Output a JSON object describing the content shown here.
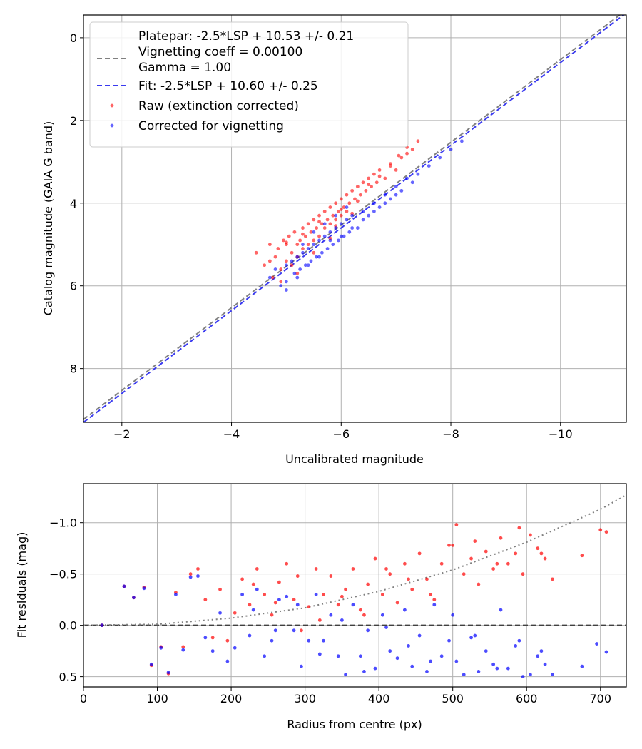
{
  "chart_data": [
    {
      "type": "scatter",
      "xlabel": "Uncalibrated magnitude",
      "ylabel": "Catalog magnitude (GAIA G band)",
      "xlim": [
        -1.3,
        -11.2
      ],
      "ylim": [
        -0.55,
        9.3
      ],
      "x_inverted": true,
      "y_inverted": true,
      "xticks": [
        -2,
        -4,
        -6,
        -8,
        -10
      ],
      "xtick_labels": [
        "−2",
        "−4",
        "−6",
        "−8",
        "−10"
      ],
      "yticks": [
        0,
        2,
        4,
        6,
        8
      ],
      "ytick_labels": [
        "0",
        "2",
        "4",
        "6",
        "8"
      ],
      "grid": true,
      "legend_position": "top-left",
      "lines": [
        {
          "name": "Platepar: -2.5*LSP + 10.53 +/- 0.21\nVignetting coeff = 0.00100\nGamma = 1.00",
          "color": "#808080",
          "style": "dashed",
          "slope": 1.0,
          "intercept": 10.53
        },
        {
          "name": "Fit: -2.5*LSP + 10.60 +/- 0.25",
          "color": "#3a3af0",
          "style": "dashed",
          "slope": 1.0,
          "intercept": 10.6
        }
      ],
      "series": [
        {
          "name": "Raw (extinction corrected)",
          "color": "#ff0000",
          "x": [
            -4.45,
            -4.6,
            -4.7,
            -4.75,
            -4.8,
            -4.85,
            -4.9,
            -4.95,
            -5.0,
            -5.0,
            -5.05,
            -5.1,
            -5.1,
            -5.15,
            -5.2,
            -5.2,
            -5.25,
            -5.3,
            -5.3,
            -5.35,
            -5.4,
            -5.4,
            -5.45,
            -5.5,
            -5.5,
            -5.55,
            -5.6,
            -5.6,
            -5.65,
            -5.7,
            -5.7,
            -5.75,
            -5.8,
            -5.8,
            -5.85,
            -5.9,
            -5.9,
            -5.95,
            -6.0,
            -6.0,
            -6.05,
            -6.1,
            -6.1,
            -6.15,
            -6.2,
            -6.25,
            -6.3,
            -6.35,
            -6.4,
            -6.45,
            -6.5,
            -6.55,
            -6.6,
            -6.65,
            -6.7,
            -6.8,
            -6.9,
            -7.0,
            -7.1,
            -7.2,
            -7.3,
            -7.4,
            -4.7,
            -4.9,
            -5.0,
            -5.2,
            -5.3,
            -5.5,
            -5.6,
            -5.8,
            -5.9,
            -6.0,
            -6.2,
            -6.3,
            -6.5,
            -6.7,
            -6.9,
            -7.05,
            -7.2
          ],
          "y": [
            5.2,
            5.5,
            5.0,
            5.8,
            5.3,
            5.1,
            5.6,
            4.9,
            5.4,
            5.0,
            4.8,
            5.2,
            5.5,
            4.7,
            5.0,
            5.3,
            4.9,
            4.6,
            5.1,
            4.8,
            4.5,
            5.0,
            4.7,
            4.4,
            4.9,
            4.6,
            4.3,
            4.8,
            4.5,
            4.2,
            4.6,
            4.4,
            4.1,
            4.5,
            4.3,
            4.0,
            4.4,
            4.2,
            3.9,
            4.3,
            4.1,
            3.8,
            4.2,
            4.0,
            3.7,
            3.9,
            3.6,
            3.8,
            3.5,
            3.7,
            3.4,
            3.6,
            3.3,
            3.5,
            3.2,
            3.4,
            3.1,
            3.2,
            2.9,
            2.8,
            2.7,
            2.5,
            5.4,
            5.9,
            4.95,
            5.7,
            4.75,
            5.2,
            4.45,
            4.85,
            4.55,
            4.15,
            4.25,
            3.95,
            3.55,
            3.35,
            3.05,
            2.85,
            2.65
          ]
        },
        {
          "name": "Corrected for vignetting",
          "color": "#0000ff",
          "x": [
            -4.7,
            -4.8,
            -4.9,
            -5.0,
            -5.0,
            -5.1,
            -5.15,
            -5.2,
            -5.25,
            -5.3,
            -5.35,
            -5.4,
            -5.45,
            -5.5,
            -5.55,
            -5.6,
            -5.65,
            -5.7,
            -5.75,
            -5.8,
            -5.85,
            -5.9,
            -5.95,
            -6.0,
            -6.05,
            -6.1,
            -6.15,
            -6.2,
            -6.3,
            -6.4,
            -6.5,
            -6.6,
            -6.7,
            -6.8,
            -6.9,
            -7.0,
            -7.1,
            -7.2,
            -7.4,
            -7.6,
            -7.8,
            -8.0,
            -8.2,
            -5.0,
            -5.2,
            -5.4,
            -5.6,
            -5.8,
            -6.0,
            -6.2,
            -6.4,
            -6.6,
            -6.8,
            -7.0,
            -7.3,
            -5.3,
            -5.5,
            -5.7,
            -5.9,
            -6.1
          ],
          "y": [
            5.8,
            5.6,
            6.0,
            5.5,
            5.9,
            5.4,
            5.7,
            5.3,
            5.6,
            5.2,
            5.5,
            5.1,
            5.4,
            5.0,
            5.3,
            4.9,
            5.2,
            4.8,
            5.1,
            4.7,
            5.0,
            4.6,
            4.9,
            4.5,
            4.8,
            4.4,
            4.7,
            4.3,
            4.6,
            4.2,
            4.3,
            4.0,
            4.1,
            3.8,
            3.9,
            3.6,
            3.7,
            3.4,
            3.3,
            3.1,
            2.9,
            2.7,
            2.5,
            6.1,
            5.8,
            5.5,
            5.3,
            4.9,
            4.8,
            4.6,
            4.4,
            4.2,
            4.0,
            3.8,
            3.5,
            5.0,
            4.7,
            4.5,
            4.3,
            4.1
          ]
        }
      ]
    },
    {
      "type": "scatter",
      "xlabel": "Radius from centre (px)",
      "ylabel": "Fit residuals (mag)",
      "xlim": [
        0,
        735
      ],
      "ylim": [
        -1.38,
        0.6
      ],
      "xticks": [
        0,
        100,
        200,
        300,
        400,
        500,
        600,
        700
      ],
      "xtick_labels": [
        "0",
        "100",
        "200",
        "300",
        "400",
        "500",
        "600",
        "700"
      ],
      "yticks": [
        0.5,
        0.0,
        -0.5,
        -1.0
      ],
      "ytick_labels": [
        "0.5",
        "0.0",
        "−0.5",
        "−1.0"
      ],
      "grid": true,
      "lines": [
        {
          "name": "zero",
          "color": "#404040",
          "style": "dashed",
          "points": [
            [
              0,
              0.0
            ],
            [
              735,
              0.0
            ]
          ]
        },
        {
          "name": "vignetting model",
          "color": "#808080",
          "style": "dotted",
          "points": [
            [
              0,
              0.0
            ],
            [
              100,
              -0.01
            ],
            [
              200,
              -0.07
            ],
            [
              300,
              -0.17
            ],
            [
              400,
              -0.33
            ],
            [
              500,
              -0.54
            ],
            [
              600,
              -0.81
            ],
            [
              700,
              -1.13
            ],
            [
              735,
              -1.27
            ]
          ]
        }
      ],
      "series": [
        {
          "name": "Raw",
          "color": "#ff0000",
          "x": [
            25,
            55,
            68,
            82,
            92,
            105,
            115,
            125,
            135,
            145,
            155,
            165,
            175,
            185,
            195,
            205,
            215,
            225,
            235,
            245,
            255,
            265,
            275,
            285,
            295,
            305,
            315,
            325,
            335,
            345,
            355,
            365,
            375,
            385,
            395,
            405,
            415,
            425,
            435,
            445,
            455,
            465,
            475,
            485,
            495,
            505,
            515,
            525,
            535,
            545,
            555,
            565,
            575,
            585,
            595,
            605,
            615,
            625,
            635,
            675,
            700,
            708,
            230,
            260,
            290,
            320,
            350,
            380,
            410,
            440,
            470,
            500,
            530,
            560,
            590,
            620
          ],
          "y": [
            0.0,
            -0.38,
            -0.27,
            -0.37,
            0.39,
            0.21,
            0.47,
            -0.32,
            0.21,
            -0.5,
            -0.55,
            -0.25,
            0.12,
            -0.35,
            0.15,
            -0.12,
            -0.45,
            -0.2,
            -0.55,
            -0.3,
            -0.1,
            -0.42,
            -0.6,
            -0.25,
            0.05,
            -0.18,
            -0.55,
            -0.3,
            -0.48,
            -0.2,
            -0.35,
            -0.55,
            -0.15,
            -0.4,
            -0.65,
            -0.3,
            -0.5,
            -0.22,
            -0.6,
            -0.35,
            -0.7,
            -0.45,
            -0.25,
            -0.6,
            -0.78,
            -0.98,
            -0.5,
            -0.65,
            -0.4,
            -0.72,
            -0.55,
            -0.85,
            -0.6,
            -0.7,
            -0.5,
            -0.88,
            -0.75,
            -0.65,
            -0.45,
            -0.68,
            -0.93,
            -0.91,
            -0.4,
            -0.22,
            -0.48,
            -0.05,
            -0.28,
            -0.1,
            -0.55,
            -0.45,
            -0.3,
            -0.78,
            -0.82,
            -0.6,
            -0.95,
            -0.7
          ]
        },
        {
          "name": "Corrected",
          "color": "#0000ff",
          "x": [
            25,
            55,
            68,
            82,
            92,
            105,
            115,
            125,
            135,
            145,
            155,
            165,
            175,
            185,
            195,
            205,
            215,
            225,
            235,
            245,
            255,
            265,
            275,
            285,
            295,
            305,
            315,
            325,
            335,
            345,
            355,
            365,
            375,
            385,
            395,
            405,
            415,
            425,
            435,
            445,
            455,
            465,
            475,
            485,
            495,
            505,
            515,
            525,
            535,
            545,
            555,
            565,
            575,
            585,
            595,
            605,
            615,
            625,
            635,
            675,
            695,
            708,
            230,
            260,
            290,
            320,
            350,
            380,
            410,
            440,
            470,
            500,
            530,
            560,
            590,
            620
          ],
          "y": [
            0.0,
            -0.38,
            -0.27,
            -0.36,
            0.38,
            0.22,
            0.46,
            -0.3,
            0.24,
            -0.47,
            -0.48,
            0.12,
            0.25,
            -0.12,
            0.35,
            0.22,
            -0.3,
            0.1,
            -0.35,
            0.3,
            0.15,
            -0.25,
            -0.28,
            0.05,
            0.4,
            0.15,
            -0.3,
            0.15,
            -0.1,
            0.3,
            0.48,
            -0.2,
            0.3,
            0.05,
            0.42,
            -0.1,
            0.25,
            0.32,
            -0.15,
            0.4,
            0.1,
            0.45,
            -0.2,
            0.3,
            0.15,
            0.35,
            0.48,
            0.12,
            0.45,
            0.25,
            0.38,
            -0.15,
            0.42,
            0.2,
            0.5,
            0.48,
            0.3,
            0.38,
            0.48,
            0.4,
            0.18,
            0.26,
            -0.15,
            0.05,
            -0.2,
            0.28,
            -0.05,
            0.45,
            0.02,
            0.2,
            0.35,
            -0.1,
            0.1,
            0.42,
            0.15,
            0.25
          ]
        }
      ]
    }
  ],
  "legend": {
    "entries": [
      {
        "lines": [
          "Platepar: -2.5*LSP + 10.53 +/- 0.21",
          "Vignetting coeff = 0.00100",
          "Gamma = 1.00"
        ],
        "color": "#808080",
        "kind": "dash"
      },
      {
        "lines": [
          "Fit: -2.5*LSP + 10.60 +/- 0.25"
        ],
        "color": "#3a3af0",
        "kind": "dash"
      },
      {
        "lines": [
          "Raw (extinction corrected)"
        ],
        "color": "#ff0000",
        "kind": "dot"
      },
      {
        "lines": [
          "Corrected for vignetting"
        ],
        "color": "#0000ff",
        "kind": "dot"
      }
    ]
  }
}
